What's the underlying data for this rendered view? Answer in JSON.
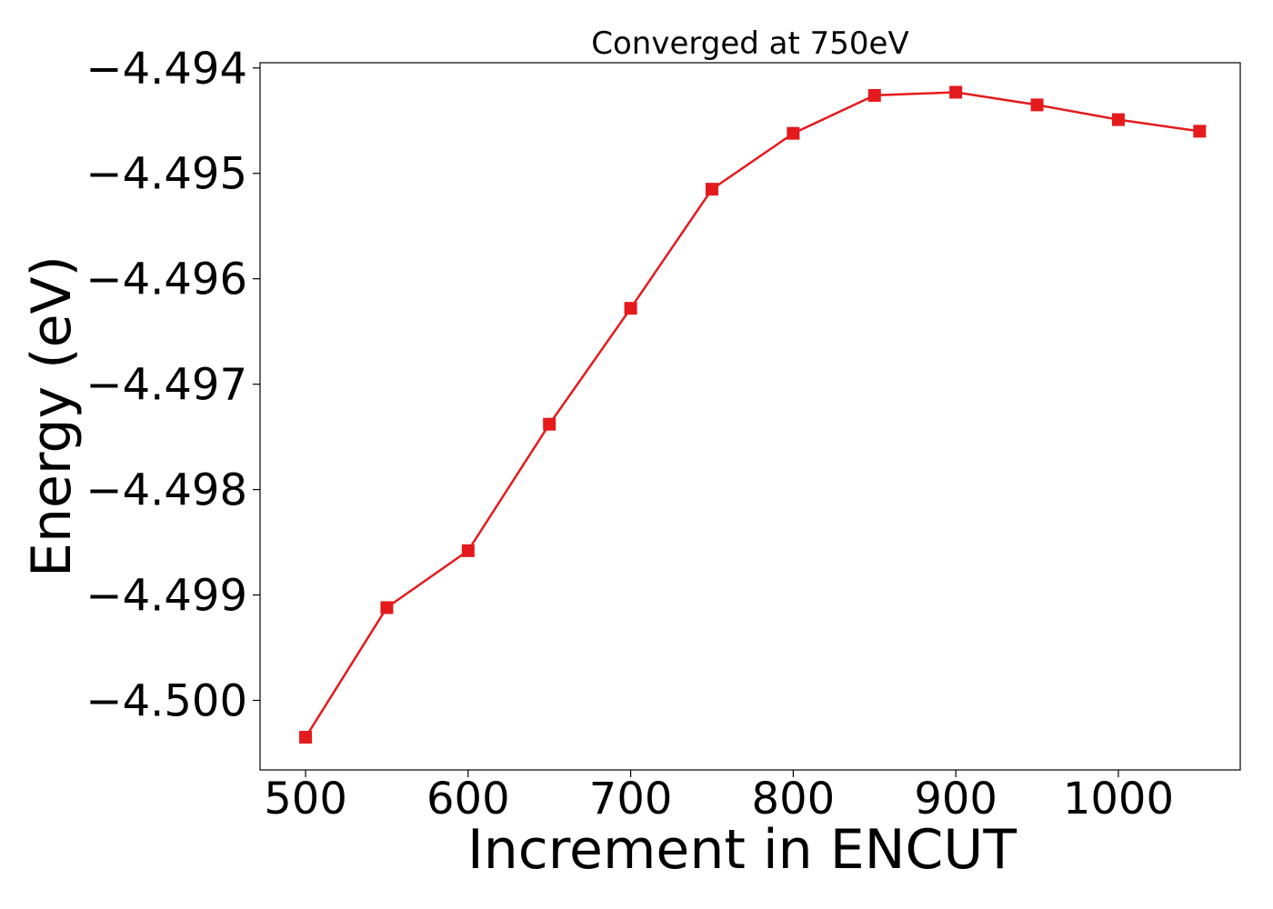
{
  "chart_data": {
    "type": "line",
    "title": "Converged at 750eV",
    "xlabel": "Increment in ENCUT",
    "ylabel": "Energy (eV)",
    "x": [
      500,
      550,
      600,
      650,
      700,
      750,
      800,
      850,
      900,
      950,
      1000,
      1050
    ],
    "series": [
      {
        "values": [
          -4.50035,
          -4.49912,
          -4.49858,
          -4.49738,
          -4.49628,
          -4.49515,
          -4.49462,
          -4.49426,
          -4.49423,
          -4.49435,
          -4.49449,
          -4.4946
        ],
        "color": "#e41a1c",
        "marker": "square"
      }
    ],
    "xlim": [
      472,
      1075
    ],
    "ylim": [
      -4.50066,
      -4.49395
    ],
    "xticks": [
      500,
      600,
      700,
      800,
      900,
      1000
    ],
    "xtick_labels": [
      "500",
      "600",
      "700",
      "800",
      "900",
      "1000"
    ],
    "yticks": [
      -4.5,
      -4.499,
      -4.498,
      -4.497,
      -4.496,
      -4.495,
      -4.494
    ],
    "ytick_labels": [
      "−4.500",
      "−4.499",
      "−4.498",
      "−4.497",
      "−4.496",
      "−4.495",
      "−4.494"
    ],
    "grid": false,
    "legend": "none"
  }
}
